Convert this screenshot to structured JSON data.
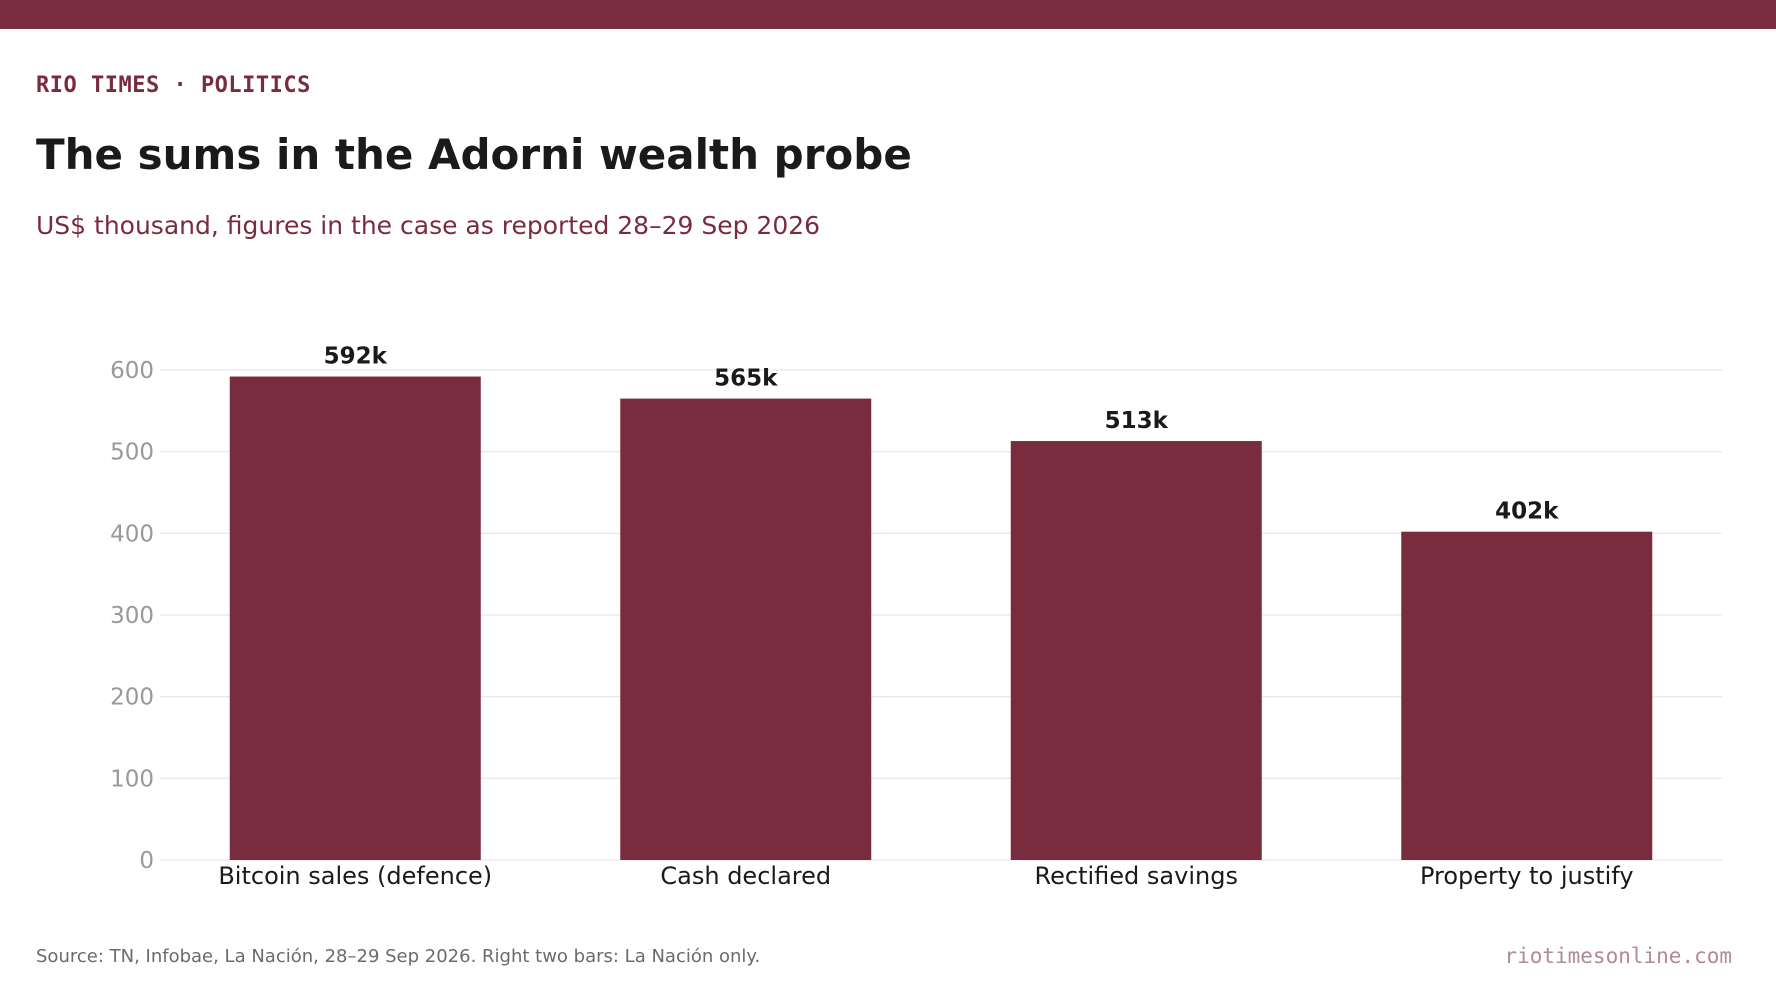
{
  "header": {
    "kicker": "RIO TIMES · POLITICS",
    "title": "The sums in the Adorni wealth probe",
    "subtitle": "US$ thousand, figures in the case as reported 28–29 Sep 2026"
  },
  "footer": {
    "source": "Source: TN, Infobae, La Nación, 28–29 Sep 2026. Right two bars: La Nación only.",
    "site": "riotimesonline.com"
  },
  "colors": {
    "brand": "#7a2c3f",
    "bar": "#7a2c3f",
    "gridline": "#e6e6e6",
    "tick_label": "#999999",
    "category_label": "#1a1a1a",
    "value_label": "#1a1a1a"
  },
  "chart_data": {
    "type": "bar",
    "categories": [
      "Bitcoin sales (defence)",
      "Cash declared",
      "Rectified savings",
      "Property to justify"
    ],
    "values": [
      592,
      565,
      513,
      402
    ],
    "value_labels": [
      "592k",
      "565k",
      "513k",
      "402k"
    ],
    "ylim": [
      0,
      600
    ],
    "yticks": [
      0,
      100,
      200,
      300,
      400,
      500,
      600
    ],
    "grid": true,
    "legend": "none"
  }
}
